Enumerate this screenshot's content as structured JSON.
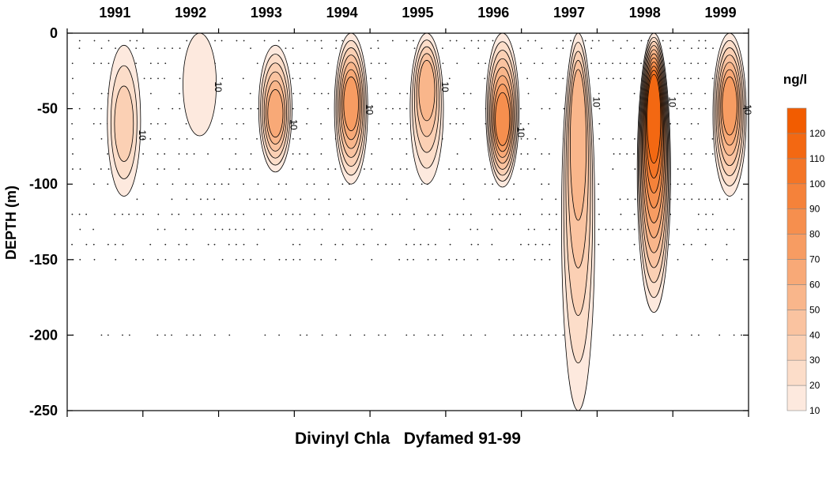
{
  "chart_data": {
    "type": "contour",
    "title": "Divinyl Chla   Dyfamed 91-99",
    "ylabel": "DEPTH (m)",
    "years": [
      "1991",
      "1992",
      "1993",
      "1994",
      "1995",
      "1996",
      "1997",
      "1998",
      "1999"
    ],
    "ylim": [
      -250,
      0
    ],
    "yticks": [
      0,
      -50,
      -100,
      -150,
      -200,
      -250
    ],
    "colorbar": {
      "unit": "ng/l",
      "levels": [
        10,
        20,
        30,
        40,
        50,
        60,
        70,
        80,
        90,
        100,
        110,
        120
      ],
      "colors": [
        "#fde9de",
        "#fcddc9",
        "#fbd0b4",
        "#fac3a0",
        "#f9b68b",
        "#f8a977",
        "#f79c62",
        "#f68f4e",
        "#f5823a",
        "#f47526",
        "#f36812",
        "#f25c00"
      ]
    },
    "contour_label": "10",
    "features": [
      {
        "year": "1991",
        "depth_top": -8,
        "depth_bottom": -108,
        "core_depth": -62,
        "peak": 30
      },
      {
        "year": "1992",
        "depth_top": 0,
        "depth_bottom": -68,
        "core_depth": -30,
        "peak": 15
      },
      {
        "year": "1993",
        "depth_top": -8,
        "depth_bottom": -92,
        "core_depth": -55,
        "peak": 60
      },
      {
        "year": "1994",
        "depth_top": 0,
        "depth_bottom": -100,
        "core_depth": -45,
        "peak": 70
      },
      {
        "year": "1995",
        "depth_top": 0,
        "depth_bottom": -100,
        "core_depth": -30,
        "peak": 50
      },
      {
        "year": "1996",
        "depth_top": 0,
        "depth_bottom": -102,
        "core_depth": -60,
        "peak": 80
      },
      {
        "year": "1997",
        "depth_top": 0,
        "depth_bottom": -250,
        "core_depth": -40,
        "peak": 50
      },
      {
        "year": "1998",
        "depth_top": 0,
        "depth_bottom": -185,
        "core_depth": -40,
        "peak": 110
      },
      {
        "year": "1999",
        "depth_top": 0,
        "depth_bottom": -108,
        "core_depth": -45,
        "peak": 70
      }
    ]
  }
}
